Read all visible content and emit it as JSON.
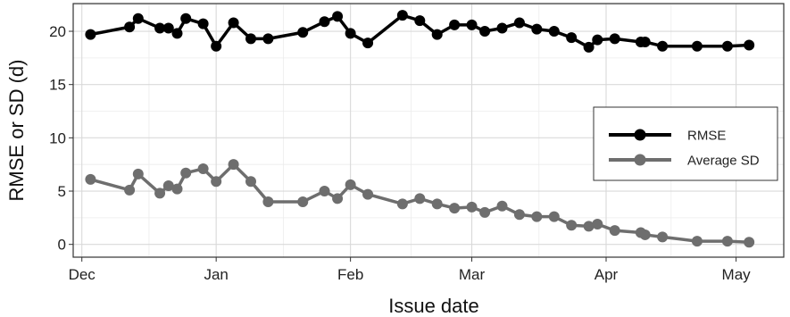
{
  "chart_data": {
    "type": "line",
    "xlabel": "Issue date",
    "ylabel": "RMSE or SD (d)",
    "x_axis": {
      "type": "date",
      "range": [
        "2016-11-29",
        "2017-05-12"
      ],
      "ticks": [
        {
          "date": "2016-12-01",
          "label": "Dec"
        },
        {
          "date": "2017-01-01",
          "label": "Jan"
        },
        {
          "date": "2017-02-01",
          "label": "Feb"
        },
        {
          "date": "2017-03-01",
          "label": "Mar"
        },
        {
          "date": "2017-04-01",
          "label": "Apr"
        },
        {
          "date": "2017-05-01",
          "label": "May"
        }
      ]
    },
    "ylim": [
      -1.2,
      22.6
    ],
    "yticks": [
      0,
      5,
      10,
      15,
      20
    ],
    "grid": true,
    "legend_position": "right",
    "series": [
      {
        "name": "RMSE",
        "color": "#000000",
        "x": [
          "2016-12-03",
          "2016-12-12",
          "2016-12-14",
          "2016-12-19",
          "2016-12-21",
          "2016-12-23",
          "2016-12-25",
          "2016-12-29",
          "2017-01-01",
          "2017-01-05",
          "2017-01-09",
          "2017-01-13",
          "2017-01-21",
          "2017-01-26",
          "2017-01-29",
          "2017-02-01",
          "2017-02-05",
          "2017-02-13",
          "2017-02-17",
          "2017-02-21",
          "2017-02-25",
          "2017-02-29",
          "2017-03-04",
          "2017-03-08",
          "2017-03-12",
          "2017-03-16",
          "2017-03-20",
          "2017-03-24",
          "2017-03-28",
          "2017-03-30",
          "2017-04-03",
          "2017-04-09",
          "2017-04-10",
          "2017-04-14",
          "2017-04-22",
          "2017-04-29",
          "2017-05-04"
        ],
        "values": [
          19.7,
          20.4,
          21.2,
          20.3,
          20.3,
          19.8,
          21.2,
          20.7,
          18.6,
          20.8,
          19.3,
          19.3,
          19.9,
          20.9,
          21.4,
          19.8,
          18.9,
          21.5,
          21.0,
          19.7,
          20.6,
          20.6,
          20.0,
          20.3,
          20.8,
          20.2,
          20.0,
          19.4,
          18.5,
          19.2,
          19.3,
          19.0,
          19.0,
          18.6,
          18.6,
          18.6,
          18.7
        ]
      },
      {
        "name": "Average SD",
        "color": "#6e6e6e",
        "x": [
          "2016-12-03",
          "2016-12-12",
          "2016-12-14",
          "2016-12-19",
          "2016-12-21",
          "2016-12-23",
          "2016-12-25",
          "2016-12-29",
          "2017-01-01",
          "2017-01-05",
          "2017-01-09",
          "2017-01-13",
          "2017-01-21",
          "2017-01-26",
          "2017-01-29",
          "2017-02-01",
          "2017-02-05",
          "2017-02-13",
          "2017-02-17",
          "2017-02-21",
          "2017-02-25",
          "2017-02-29",
          "2017-03-04",
          "2017-03-08",
          "2017-03-12",
          "2017-03-16",
          "2017-03-20",
          "2017-03-24",
          "2017-03-28",
          "2017-03-30",
          "2017-04-03",
          "2017-04-09",
          "2017-04-10",
          "2017-04-14",
          "2017-04-22",
          "2017-04-29",
          "2017-05-04"
        ],
        "values": [
          6.1,
          5.1,
          6.6,
          4.8,
          5.5,
          5.2,
          6.7,
          7.1,
          5.9,
          7.5,
          5.9,
          4.0,
          4.0,
          5.0,
          4.3,
          5.6,
          4.7,
          3.8,
          4.3,
          3.8,
          3.4,
          3.5,
          3.0,
          3.6,
          2.8,
          2.6,
          2.6,
          1.8,
          1.7,
          1.9,
          1.3,
          1.1,
          0.9,
          0.7,
          0.3,
          0.3,
          0.2
        ]
      }
    ]
  }
}
